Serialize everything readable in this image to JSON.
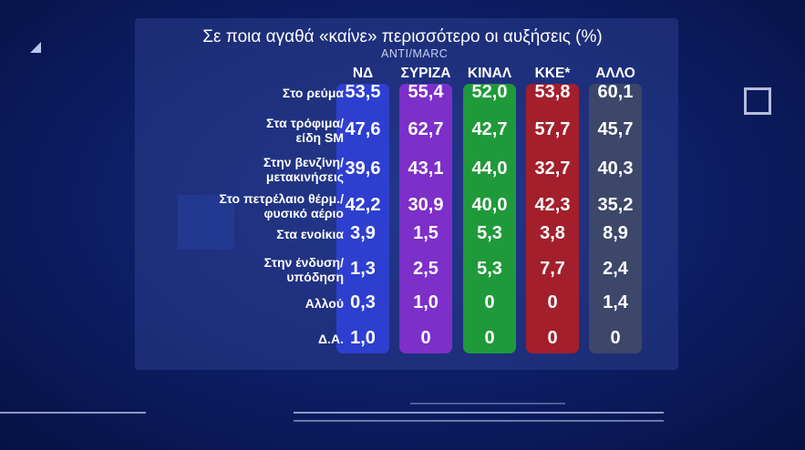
{
  "chart_data": {
    "type": "table",
    "title": "Σε ποια αγαθά «καίνε» περισσότερο οι αυξήσεις (%)",
    "source": "ANTI/MARC",
    "columns": [
      {
        "name": "ΝΔ",
        "color": "#2e3fd0"
      },
      {
        "name": "ΣΥΡΙΖΑ",
        "color": "#7d2fc9"
      },
      {
        "name": "ΚΙΝΑΛ",
        "color": "#1f9a3a"
      },
      {
        "name": "ΚΚΕ*",
        "color": "#a31f2c"
      },
      {
        "name": "ΑΛΛΟ",
        "color": "#3c4769"
      }
    ],
    "rows": [
      {
        "label": "Στο ρεύμα",
        "values": [
          "53,5",
          "55,4",
          "52,0",
          "53,8",
          "60,1"
        ]
      },
      {
        "label": "Στα τρόφιμα/\nείδη SM",
        "values": [
          "47,6",
          "62,7",
          "42,7",
          "57,7",
          "45,7"
        ]
      },
      {
        "label": "Στην βενζίνη/\nμετακινήσεις",
        "values": [
          "39,6",
          "43,1",
          "44,0",
          "32,7",
          "40,3"
        ]
      },
      {
        "label": "Στο πετρέλαιο θέρμ./\nφυσικό αέριο",
        "values": [
          "42,2",
          "30,9",
          "40,0",
          "42,3",
          "35,2"
        ]
      },
      {
        "label": "Στα ενοίκια",
        "values": [
          "3,9",
          "1,5",
          "5,3",
          "3,8",
          "8,9"
        ]
      },
      {
        "label": "Στην ένδυση/\nυπόδηση",
        "values": [
          "1,3",
          "2,5",
          "5,3",
          "7,7",
          "2,4"
        ]
      },
      {
        "label": "Αλλού",
        "values": [
          "0,3",
          "1,0",
          "0",
          "0",
          "1,4"
        ]
      },
      {
        "label": "Δ.Α.",
        "values": [
          "1,0",
          "0",
          "0",
          "0",
          "0"
        ]
      }
    ]
  }
}
